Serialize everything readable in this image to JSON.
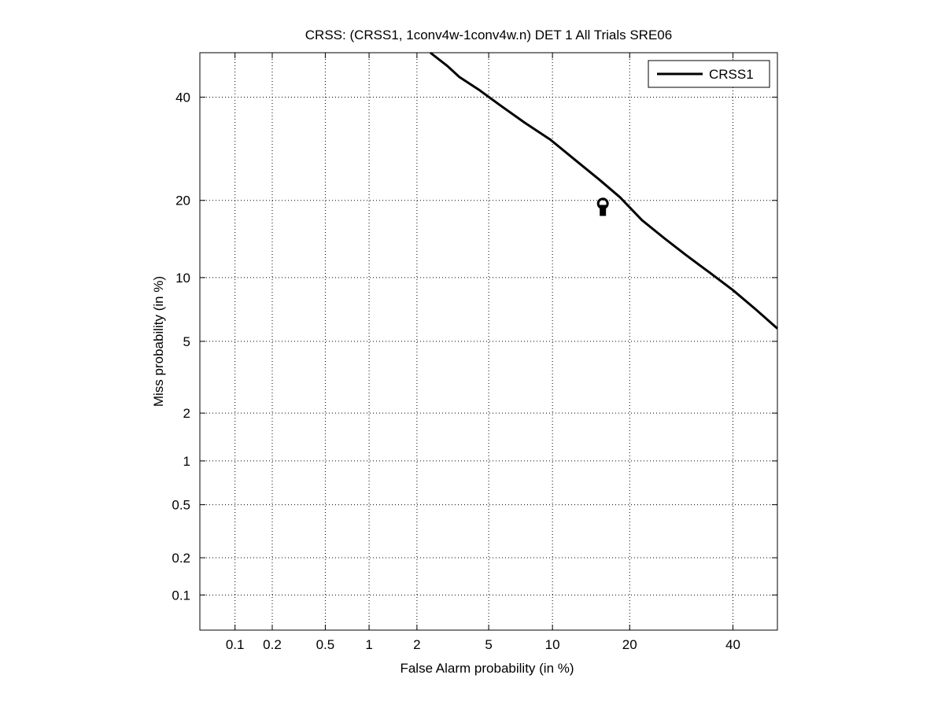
{
  "chart_data": {
    "type": "line",
    "title": "CRSS: (CRSS1, 1conv4w-1conv4w.n) DET 1 All Trials SRE06",
    "xlabel": "False Alarm probability (in %)",
    "ylabel": "Miss probability (in %)",
    "x_scale": "probit",
    "y_scale": "probit",
    "xlim": [
      0.05,
      50
    ],
    "ylim": [
      0.05,
      50
    ],
    "x_ticks": [
      0.1,
      0.2,
      0.5,
      1,
      2,
      5,
      10,
      20,
      40
    ],
    "x_tick_labels": [
      "0.1",
      "0.2",
      "0.5",
      "1",
      "2",
      "5",
      "10",
      "20",
      "40"
    ],
    "y_ticks": [
      0.1,
      0.2,
      0.5,
      1,
      2,
      5,
      10,
      20,
      40
    ],
    "y_tick_labels": [
      "0.1",
      "0.2",
      "0.5",
      "1",
      "2",
      "5",
      "10",
      "20",
      "40"
    ],
    "grid": true,
    "legend_position": "top-right",
    "series": [
      {
        "name": "CRSS1",
        "color": "#000000",
        "x": [
          2.4,
          3.0,
          3.5,
          4.5,
          5.8,
          7.5,
          9.8,
          12.5,
          15.5,
          18.5,
          22.0,
          26.0,
          30.0,
          35.0,
          40.0,
          45.0,
          50.0
        ],
        "y": [
          50.0,
          47.0,
          44.5,
          41.5,
          38.0,
          34.5,
          31.0,
          27.0,
          23.5,
          20.5,
          17.0,
          14.5,
          12.5,
          10.5,
          8.8,
          7.2,
          5.8
        ]
      }
    ],
    "markers": [
      {
        "type": "min-dcf",
        "symbol": "circle",
        "x": 16.0,
        "y": 19.5
      },
      {
        "type": "actual-dcf",
        "symbol": "square",
        "x": 16.0,
        "y": 18.8
      }
    ]
  }
}
